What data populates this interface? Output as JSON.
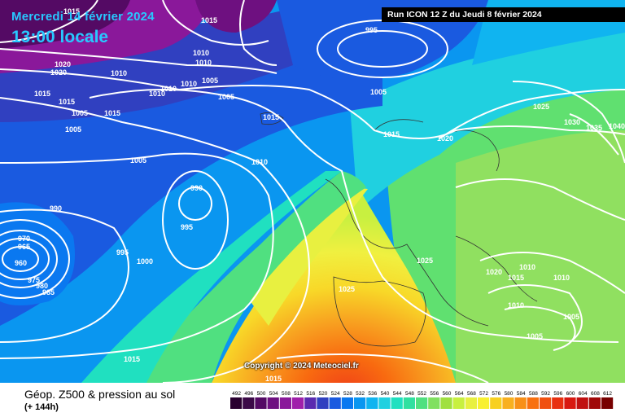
{
  "header": {
    "date": "Mercredi 14 février 2024",
    "time": "13:00 locale",
    "run": "Run ICON 12 Z du Jeudi 8 février 2024"
  },
  "footer": {
    "title": "Géop. Z500 & pression au sol",
    "subtitle": "(+ 144h)",
    "copyright": "Copyright © 2024 Meteociel.fr"
  },
  "legend": {
    "values": [
      "492",
      "496",
      "500",
      "504",
      "508",
      "512",
      "516",
      "520",
      "524",
      "528",
      "532",
      "536",
      "540",
      "544",
      "548",
      "552",
      "556",
      "560",
      "564",
      "568",
      "572",
      "576",
      "580",
      "584",
      "588",
      "592",
      "596",
      "600",
      "604",
      "608",
      "612"
    ],
    "colors": [
      "#2a0030",
      "#3c0a48",
      "#540a64",
      "#6e1080",
      "#8a189a",
      "#a020aa",
      "#5a2ab0",
      "#3040c0",
      "#1a5ae0",
      "#0a78f0",
      "#0a96f0",
      "#10b4f0",
      "#20d0e0",
      "#20e0c0",
      "#30e0a0",
      "#50e080",
      "#80e060",
      "#a0e040",
      "#c8f040",
      "#e8f040",
      "#f8f030",
      "#f8d020",
      "#f8b020",
      "#f89018",
      "#f87010",
      "#f05010",
      "#e83010",
      "#d81810",
      "#c01010",
      "#a00808",
      "#780000"
    ]
  },
  "isobars": [
    {
      "label": "1015",
      "x": 1000,
      "y": 0
    },
    {
      "label": "1015",
      "x": 1010,
      "y": 0
    },
    {
      "label": "995",
      "x": 995,
      "y": 0
    },
    {
      "label": "1020",
      "x": 1020,
      "y": 0
    },
    {
      "label": "1010",
      "x": 1010,
      "y": 0
    },
    {
      "label": "1005",
      "x": 1005,
      "y": 0
    },
    {
      "label": "1025",
      "x": 1025,
      "y": 0
    },
    {
      "label": "1030",
      "x": 1030,
      "y": 0
    },
    {
      "label": "1035",
      "x": 1035,
      "y": 0
    },
    {
      "label": "1040",
      "x": 1040,
      "y": 0
    },
    {
      "label": "990",
      "x": 990,
      "y": 0
    },
    {
      "label": "970",
      "x": 970,
      "y": 0
    },
    {
      "label": "965",
      "x": 965,
      "y": 0
    },
    {
      "label": "960",
      "x": 960,
      "y": 0
    },
    {
      "label": "975",
      "x": 975,
      "y": 0
    },
    {
      "label": "980",
      "x": 980,
      "y": 0
    },
    {
      "label": "985",
      "x": 985,
      "y": 0
    },
    {
      "label": "1000",
      "x": 1000,
      "y": 0
    }
  ]
}
